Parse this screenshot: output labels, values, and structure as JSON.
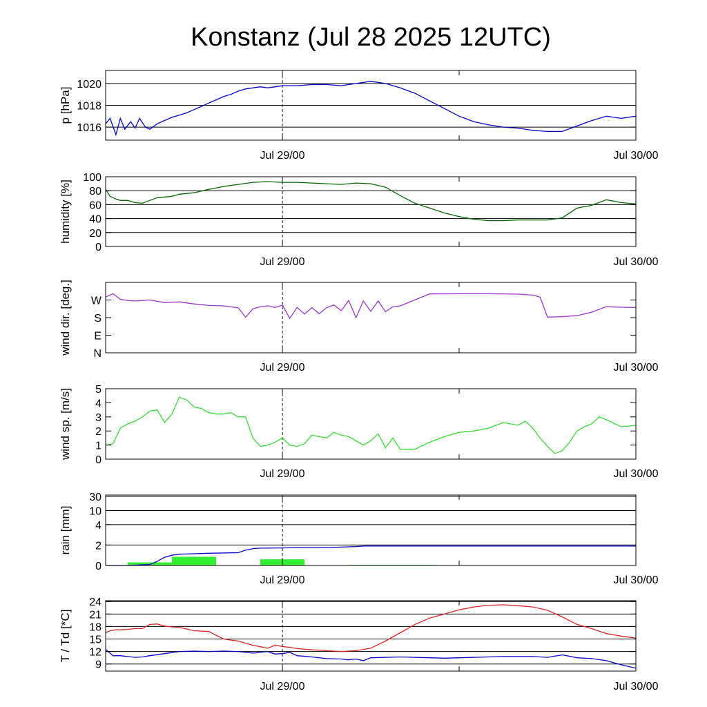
{
  "chart_data": {
    "title": "Konstanz (Jul 28 2025 12UTC)",
    "x_range": [
      "Jul 28 2025 12UTC",
      "Jul 30 2025 00UTC"
    ],
    "x_tick_labels": [
      "Jul 29/00",
      "Jul 30/00"
    ],
    "x_minor_ticks": [
      "Jul 29 12UTC"
    ],
    "panels": [
      {
        "key": "pressure",
        "type": "line",
        "ylabel": "p [hPa]",
        "ylim": [
          1014.8,
          1021.2
        ],
        "yticks": [
          1016,
          1018,
          1020
        ],
        "grid": [
          1016,
          1018,
          1020
        ],
        "series": [
          {
            "color": "#0000cc",
            "x": [
              0,
              0.3,
              0.7,
              1,
              1.3,
              1.7,
              2,
              2.3,
              2.7,
              3,
              3.5,
              4,
              4.5,
              5,
              5.5,
              6,
              6.5,
              7,
              7.5,
              8,
              8.5,
              9,
              9.5,
              10,
              10.5,
              11,
              11.5,
              12,
              13,
              14,
              15,
              16,
              17,
              18,
              19,
              20,
              21,
              22,
              23,
              24,
              25,
              26,
              27,
              28,
              29,
              30,
              31,
              32,
              33,
              34,
              35,
              36
            ],
            "values": [
              1016.3,
              1016.8,
              1015.3,
              1016.8,
              1015.8,
              1016.5,
              1015.9,
              1016.8,
              1016.0,
              1015.8,
              1016.3,
              1016.6,
              1016.9,
              1017.1,
              1017.3,
              1017.6,
              1017.9,
              1018.2,
              1018.5,
              1018.8,
              1019.0,
              1019.3,
              1019.5,
              1019.6,
              1019.7,
              1019.6,
              1019.7,
              1019.8,
              1019.8,
              1019.9,
              1019.9,
              1019.8,
              1020.0,
              1020.2,
              1020.0,
              1019.6,
              1019.1,
              1018.4,
              1017.7,
              1017.0,
              1016.5,
              1016.2,
              1016.0,
              1015.9,
              1015.7,
              1015.6,
              1015.6,
              1016.1,
              1016.6,
              1017.0,
              1016.8,
              1017.0
            ]
          }
        ]
      },
      {
        "key": "humidity",
        "type": "line",
        "ylabel": "humidity [%]",
        "ylim": [
          0,
          100
        ],
        "yticks": [
          0,
          20,
          40,
          60,
          80,
          100
        ],
        "grid": [
          20,
          40,
          60,
          80
        ],
        "series": [
          {
            "color": "#006600",
            "x": [
              0,
              0.3,
              0.7,
              1,
              1.5,
              2,
              2.5,
              3,
              3.5,
              4,
              4.5,
              5,
              6,
              7,
              8,
              9,
              10,
              11,
              12,
              13,
              14,
              15,
              16,
              17,
              18,
              19,
              20,
              21,
              22,
              23,
              24,
              25,
              26,
              27,
              28,
              29,
              30,
              31,
              32,
              33,
              34,
              35,
              36
            ],
            "values": [
              82,
              72,
              68,
              66,
              66,
              63,
              62,
              66,
              70,
              71,
              72,
              75,
              77,
              82,
              86,
              89,
              92,
              93,
              92,
              92,
              91,
              90,
              89,
              91,
              90,
              85,
              73,
              62,
              55,
              48,
              43,
              39,
              37,
              37,
              38,
              38,
              38,
              41,
              55,
              59,
              67,
              63,
              61
            ]
          }
        ]
      },
      {
        "key": "wind_direction",
        "type": "line",
        "ylabel": "wind dir. [deg.]",
        "ylim": [
          0,
          360
        ],
        "yticks": [
          0,
          90,
          180,
          270
        ],
        "ytick_labels": [
          "N",
          "E",
          "S",
          "W"
        ],
        "grid": [],
        "series": [
          {
            "color": "#9933cc",
            "x": [
              0,
              0.5,
              1,
              1.5,
              2,
              3,
              4,
              5,
              6,
              7,
              8,
              9,
              9.5,
              10,
              10.5,
              11,
              11.5,
              12,
              12.5,
              13,
              13.5,
              14,
              14.5,
              15,
              15.5,
              16,
              16.5,
              17,
              17.5,
              18,
              18.5,
              19,
              19.5,
              20,
              22,
              24,
              26,
              28,
              29,
              29.5,
              30,
              31,
              32,
              33,
              34,
              35,
              36
            ],
            "values": [
              285,
              302,
              273,
              268,
              265,
              270,
              257,
              260,
              250,
              242,
              240,
              230,
              182,
              225,
              235,
              240,
              232,
              244,
              176,
              232,
              198,
              231,
              200,
              230,
              245,
              215,
              268,
              180,
              265,
              212,
              265,
              210,
              235,
              240,
              301,
              302,
              302,
              300,
              295,
              285,
              182,
              185,
              190,
              208,
              236,
              233,
              232
            ]
          }
        ]
      },
      {
        "key": "wind_speed",
        "type": "line",
        "ylabel": "wind sp. [m/s]",
        "ylim": [
          0,
          5
        ],
        "yticks": [
          0.0,
          1.0,
          2.0,
          3.0,
          4.0,
          5.0
        ],
        "grid": [],
        "series": [
          {
            "color": "#33dd33",
            "x": [
              0,
              0.5,
              1,
              1.5,
              2,
              2.5,
              3,
              3.5,
              4,
              4.5,
              5,
              5.5,
              6,
              6.5,
              7,
              7.5,
              8,
              8.5,
              9,
              9.5,
              10,
              10.5,
              11,
              11.5,
              12,
              12.5,
              13,
              13.5,
              14,
              14.5,
              15,
              15.5,
              16,
              16.5,
              17,
              17.5,
              18,
              18.5,
              19,
              19.5,
              20,
              21,
              22,
              23,
              24,
              25,
              26,
              26.5,
              27,
              27.5,
              28,
              28.5,
              29,
              29.5,
              30,
              30.5,
              31,
              31.5,
              32,
              32.5,
              33,
              33.5,
              34,
              35,
              36
            ],
            "values": [
              1.0,
              1.1,
              2.2,
              2.5,
              2.7,
              3.0,
              3.4,
              3.5,
              2.6,
              3.2,
              4.4,
              4.2,
              3.7,
              3.6,
              3.3,
              3.2,
              3.2,
              3.3,
              3.0,
              3.0,
              1.5,
              0.9,
              1.0,
              1.2,
              1.5,
              1.0,
              0.9,
              1.1,
              1.7,
              1.6,
              1.5,
              1.9,
              1.7,
              1.6,
              1.3,
              1.0,
              1.3,
              1.8,
              0.8,
              1.5,
              0.7,
              0.7,
              1.2,
              1.6,
              1.9,
              2.0,
              2.2,
              2.4,
              2.6,
              2.5,
              2.4,
              2.7,
              2.2,
              1.5,
              0.9,
              0.4,
              0.6,
              1.2,
              2.0,
              2.3,
              2.5,
              3.0,
              2.8,
              2.3,
              2.4
            ]
          }
        ]
      },
      {
        "key": "rain",
        "type": "bar+line",
        "ylabel": "rain [mm]",
        "yscale": "nonlinear",
        "yticks": [
          0,
          2,
          4,
          10,
          30
        ],
        "grid": [
          2,
          4,
          10,
          30
        ],
        "bars": {
          "color": "#33ee33",
          "items": [
            {
              "x0": 1.5,
              "x1": 4.5,
              "value": 0.3
            },
            {
              "x0": 4.5,
              "x1": 7.5,
              "value": 0.85
            },
            {
              "x0": 10.5,
              "x1": 13.5,
              "value": 0.6
            },
            {
              "x0": 16.5,
              "x1": 22.5,
              "value": 0.05
            }
          ]
        },
        "series": [
          {
            "color": "#0000cc",
            "x": [
              0,
              1.5,
              3,
              3.5,
              4,
              4.5,
              5,
              6,
              7,
              9,
              9.5,
              10,
              10.5,
              12,
              13,
              14,
              15,
              16,
              17,
              17.5,
              18,
              20,
              24,
              28,
              32,
              36
            ],
            "values": [
              0,
              0,
              0.1,
              0.4,
              0.8,
              1.0,
              1.1,
              1.15,
              1.2,
              1.25,
              1.5,
              1.65,
              1.7,
              1.72,
              1.75,
              1.75,
              1.75,
              1.8,
              1.85,
              1.9,
              1.9,
              1.9,
              1.9,
              1.9,
              1.9,
              1.9
            ]
          }
        ]
      },
      {
        "key": "temperature",
        "type": "line",
        "ylabel": "T / Td [*C]",
        "ylim": [
          7.3,
          24.2
        ],
        "yticks": [
          9,
          12,
          15,
          18,
          21,
          24
        ],
        "grid": [
          9,
          12,
          15,
          18,
          21,
          24
        ],
        "series": [
          {
            "color": "#dd2222",
            "x": [
              0,
              0.3,
              0.7,
              1,
              1.5,
              2,
              2.5,
              3,
              3.5,
              4,
              4.5,
              5,
              6,
              7,
              8,
              9,
              10,
              11,
              11.5,
              12,
              12.5,
              13,
              14,
              15,
              16,
              17,
              18,
              19,
              20,
              21,
              22,
              23,
              24,
              25,
              26,
              27,
              28,
              29,
              30,
              31,
              32,
              33,
              34,
              35,
              36
            ],
            "values": [
              16.5,
              17.0,
              17.2,
              17.2,
              17.3,
              17.5,
              17.5,
              18.5,
              18.6,
              18.1,
              17.9,
              17.8,
              17.0,
              16.8,
              15.0,
              14.5,
              13.5,
              12.8,
              13.5,
              13.2,
              13.0,
              12.7,
              12.4,
              12.2,
              12.0,
              12.2,
              12.8,
              14.5,
              16.5,
              18.5,
              20.0,
              21.0,
              22.0,
              22.7,
              23.1,
              23.2,
              23.0,
              22.7,
              21.9,
              20.3,
              18.5,
              17.5,
              16.3,
              15.7,
              15.2
            ]
          },
          {
            "color": "#0000cc",
            "x": [
              0,
              0.5,
              1,
              1.5,
              2,
              2.5,
              3,
              4,
              5,
              6,
              7,
              8,
              9,
              10,
              11,
              11.5,
              12,
              12.5,
              13,
              14,
              15,
              16,
              16.5,
              17,
              17.5,
              18,
              19,
              20,
              21,
              22,
              23,
              24,
              25,
              26,
              27,
              28,
              29,
              30,
              31,
              32,
              33,
              34,
              35,
              36
            ],
            "values": [
              12.5,
              11.0,
              11.0,
              10.8,
              10.6,
              10.7,
              11.0,
              11.5,
              12.0,
              12.1,
              12.0,
              12.1,
              12.0,
              11.6,
              12.0,
              11.4,
              11.5,
              11.8,
              11.0,
              10.7,
              10.3,
              10.2,
              10.0,
              10.2,
              9.8,
              10.5,
              10.6,
              10.7,
              10.6,
              10.5,
              10.4,
              10.5,
              10.6,
              10.7,
              10.8,
              10.8,
              10.8,
              10.6,
              11.2,
              10.5,
              10.3,
              9.8,
              8.8,
              8.0
            ]
          }
        ]
      }
    ]
  }
}
